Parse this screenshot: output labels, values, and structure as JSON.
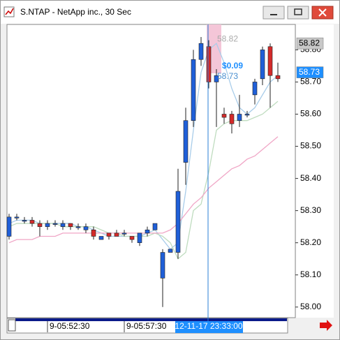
{
  "window": {
    "title": "S.NTAP - NetApp inc., 30 Sec"
  },
  "chart_data": {
    "type": "candlestick",
    "categories": [
      null,
      null,
      null,
      null,
      null,
      "9-05:52:30",
      null,
      null,
      null,
      null,
      null,
      null,
      null,
      null,
      null,
      "9-05:57:30",
      null,
      null,
      null,
      null,
      null,
      null,
      null,
      null,
      null,
      null,
      null,
      null,
      null,
      null,
      null,
      null,
      null,
      null,
      null,
      null
    ],
    "open": [
      58.22,
      58.28,
      58.27,
      58.27,
      58.26,
      58.25,
      58.26,
      58.25,
      58.26,
      58.25,
      58.24,
      58.24,
      58.21,
      58.23,
      58.23,
      58.23,
      58.22,
      58.2,
      58.23,
      58.24,
      58.09,
      58.17,
      58.17,
      58.45,
      58.58,
      58.77,
      58.81,
      58.7,
      58.6,
      58.6,
      58.58,
      58.6,
      58.66,
      58.71,
      58.81,
      58.72
    ],
    "high": [
      58.29,
      58.29,
      58.28,
      58.28,
      58.27,
      58.27,
      58.27,
      58.27,
      58.26,
      58.26,
      58.26,
      58.25,
      58.22,
      58.23,
      58.24,
      58.24,
      58.22,
      58.23,
      58.25,
      58.26,
      58.18,
      58.18,
      58.43,
      58.62,
      58.8,
      58.84,
      58.83,
      58.74,
      58.62,
      58.61,
      58.66,
      58.61,
      58.71,
      58.81,
      58.82,
      58.76
    ],
    "low": [
      58.21,
      58.27,
      58.26,
      58.25,
      58.22,
      58.24,
      58.25,
      58.24,
      58.24,
      58.24,
      58.23,
      58.21,
      58.21,
      58.21,
      58.22,
      58.22,
      58.2,
      58.19,
      58.22,
      58.24,
      58.0,
      58.17,
      58.15,
      58.38,
      58.56,
      58.75,
      58.68,
      58.56,
      58.57,
      58.54,
      58.56,
      58.59,
      58.63,
      58.69,
      58.62,
      58.7
    ],
    "close": [
      58.28,
      58.28,
      58.27,
      58.26,
      58.25,
      58.26,
      58.26,
      58.26,
      58.25,
      58.25,
      58.25,
      58.22,
      58.22,
      58.22,
      58.22,
      58.23,
      58.21,
      58.23,
      58.24,
      58.26,
      58.17,
      58.18,
      58.36,
      58.58,
      58.77,
      58.82,
      58.7,
      58.72,
      58.59,
      58.57,
      58.6,
      58.6,
      58.7,
      58.8,
      58.72,
      58.71
    ],
    "up_color": "#1f5fd8",
    "down_color": "#d42a2a",
    "series": [
      {
        "color": "#a9cdea",
        "values": [
          58.26,
          58.27,
          58.27,
          58.27,
          58.26,
          58.26,
          58.26,
          58.26,
          58.26,
          58.25,
          58.25,
          58.24,
          58.23,
          58.22,
          58.22,
          58.22,
          58.22,
          58.22,
          58.23,
          58.24,
          58.21,
          58.18,
          58.2,
          58.36,
          58.55,
          58.73,
          58.8,
          58.82,
          58.76,
          58.68,
          58.62,
          58.6,
          58.62,
          58.66,
          58.7,
          58.72
        ]
      },
      {
        "color": "#bfdcbf",
        "values": [
          58.25,
          58.26,
          58.26,
          58.26,
          58.26,
          58.26,
          58.26,
          58.25,
          58.25,
          58.25,
          58.25,
          58.25,
          58.24,
          58.23,
          58.23,
          58.22,
          58.22,
          58.22,
          58.22,
          58.23,
          58.22,
          58.2,
          58.15,
          58.17,
          58.3,
          58.32,
          58.42,
          58.55,
          58.57,
          58.58,
          58.58,
          58.58,
          58.59,
          58.6,
          58.62,
          58.64
        ]
      },
      {
        "color": "#f0a6c6",
        "values": [
          58.2,
          58.21,
          58.21,
          58.21,
          58.22,
          58.22,
          58.22,
          58.23,
          58.23,
          58.23,
          58.23,
          58.23,
          58.23,
          58.23,
          58.23,
          58.23,
          58.23,
          58.23,
          58.23,
          58.23,
          58.23,
          58.24,
          58.26,
          58.29,
          58.32,
          58.34,
          58.37,
          58.39,
          58.41,
          58.43,
          58.44,
          58.46,
          58.47,
          58.49,
          58.51,
          58.53
        ]
      }
    ],
    "ylim": [
      57.967,
      58.879
    ],
    "yticks": [
      {
        "value": 58.8,
        "label": "58.80"
      },
      {
        "value": 58.7,
        "label": "58.70"
      },
      {
        "value": 58.6,
        "label": "58.60"
      },
      {
        "value": 58.5,
        "label": "58.50"
      },
      {
        "value": 58.4,
        "label": "58.40"
      },
      {
        "value": 58.3,
        "label": "58.30"
      },
      {
        "value": 58.2,
        "label": "58.20"
      },
      {
        "value": 58.1,
        "label": "58.10"
      },
      {
        "value": 58,
        "label": "58.00"
      }
    ],
    "price_markers": [
      {
        "value": 58.82,
        "label": "58.82",
        "color": "#c8c8c8"
      },
      {
        "value": 58.73,
        "label": "58.73",
        "color": "#1e8fff"
      }
    ],
    "annotations": [
      {
        "label": "58.82",
        "value": 58.82
      },
      {
        "label": "$0.09"
      },
      {
        "label": "58.73",
        "value": 58.73
      }
    ],
    "cursor_time": "12-11-17 23:33:00"
  }
}
